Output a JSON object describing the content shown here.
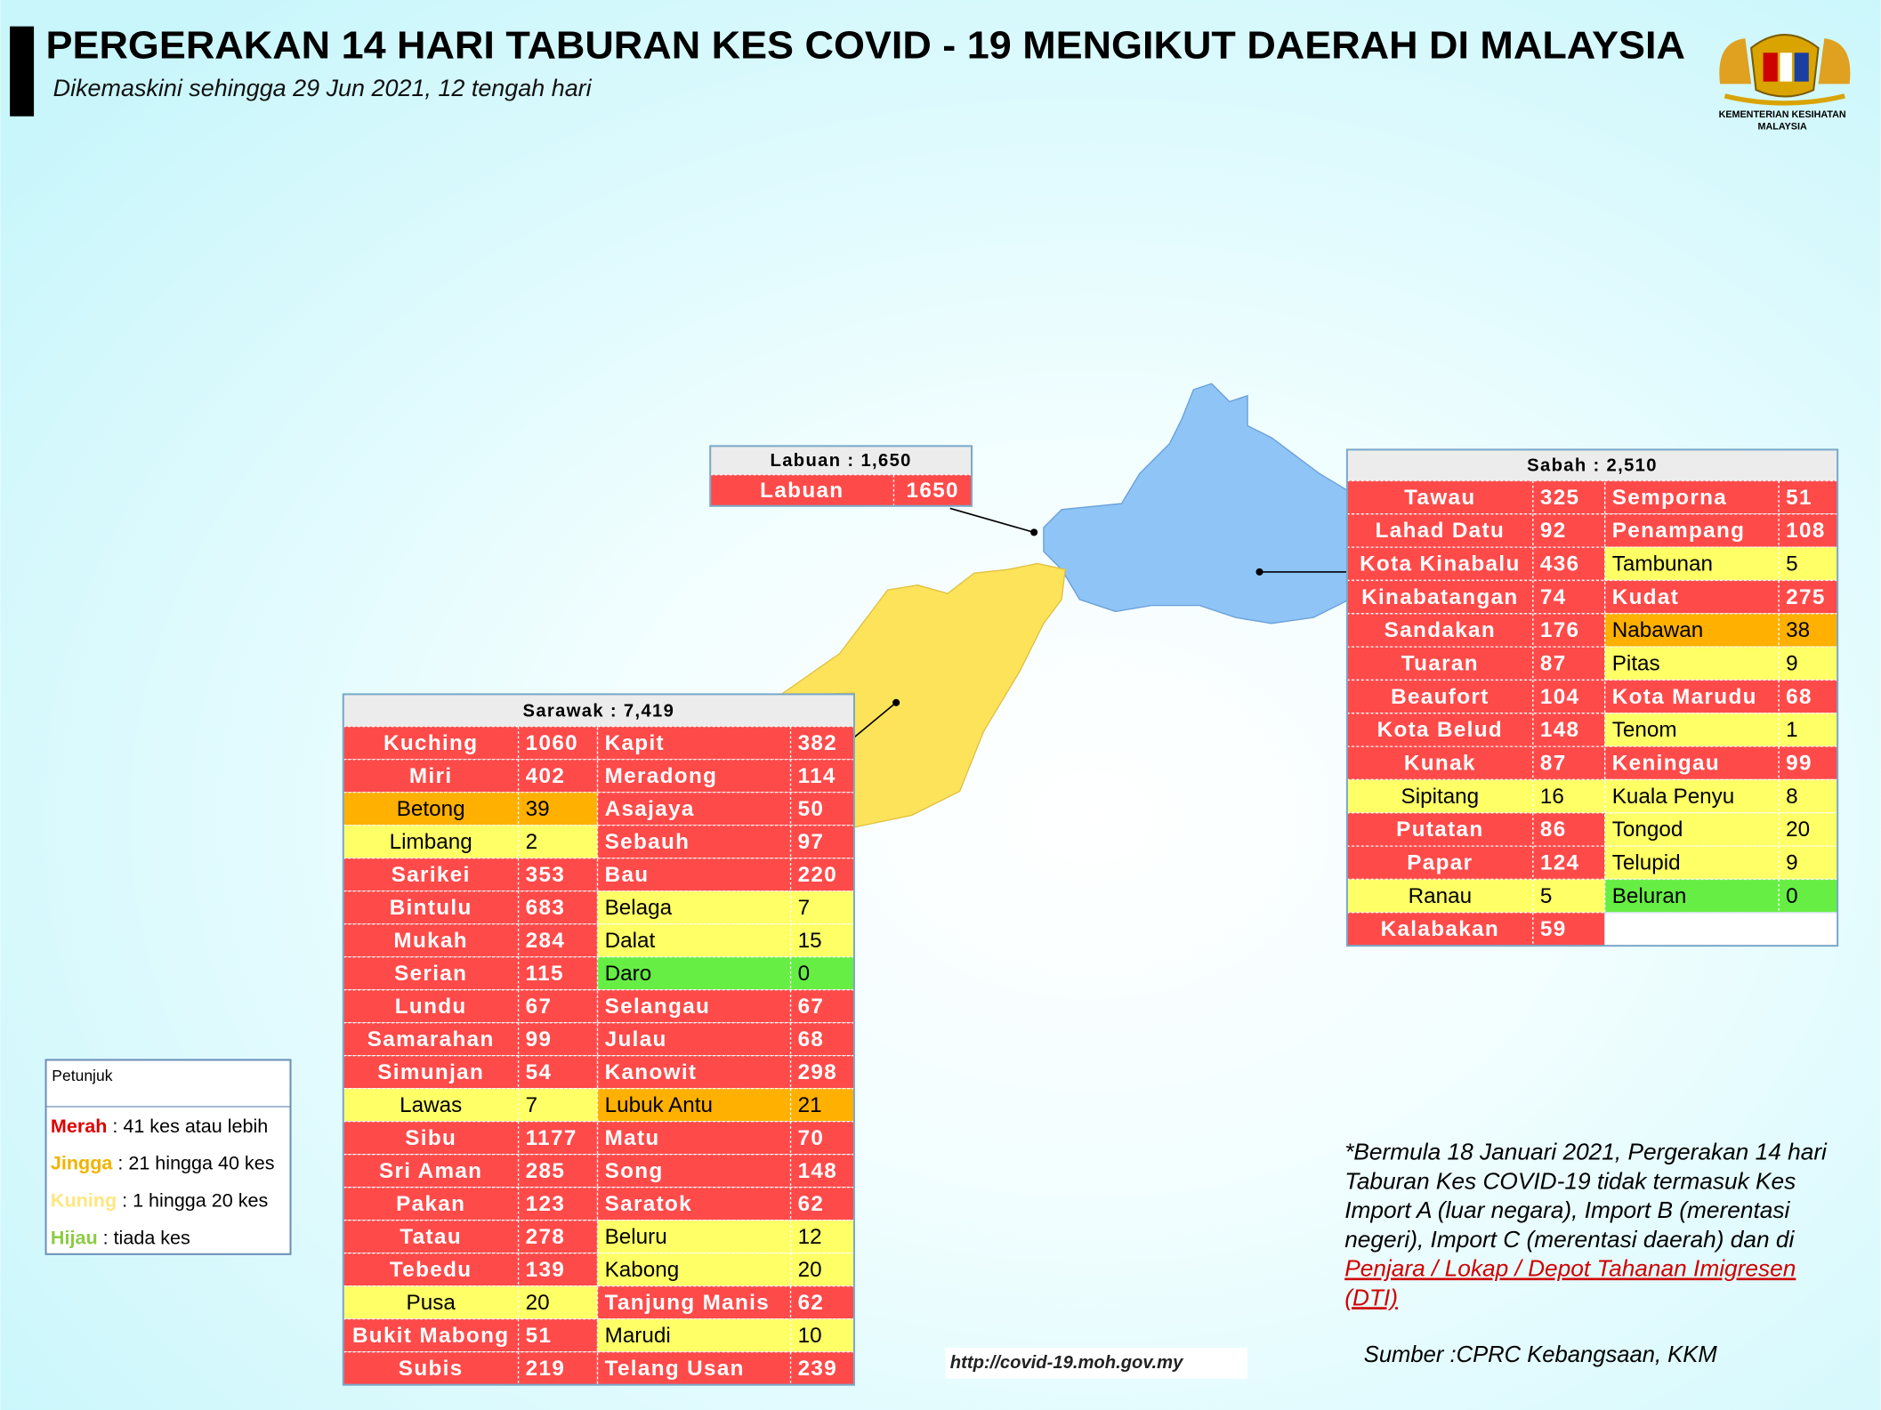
{
  "header": {
    "title": "PERGERAKAN 14 HARI TABURAN KES COVID - 19 MENGIKUT DAERAH DI MALAYSIA",
    "subtitle": "Dikemaskini sehingga 29 Jun 2021, 12 tengah hari",
    "logo_lines": [
      "KEMENTERIAN KESIHATAN",
      "MALAYSIA"
    ]
  },
  "tables": {
    "labuan": {
      "title": "Labuan : 1,650",
      "rows": [
        [
          {
            "name": "Labuan",
            "cases": 1650,
            "color": "#ff4a4a"
          }
        ]
      ]
    },
    "sabah": {
      "title": "Sabah : 2,510",
      "rows": [
        [
          {
            "name": "Tawau",
            "cases": 325,
            "color": "#ff4a4a"
          },
          {
            "name": "Semporna",
            "cases": 51,
            "color": "#ff4a4a"
          }
        ],
        [
          {
            "name": "Lahad Datu",
            "cases": 92,
            "color": "#ff4a4a"
          },
          {
            "name": "Penampang",
            "cases": 108,
            "color": "#ff4a4a"
          }
        ],
        [
          {
            "name": "Kota Kinabalu",
            "cases": 436,
            "color": "#ff4a4a"
          },
          {
            "name": "Tambunan",
            "cases": 5,
            "color": "#ffff66"
          }
        ],
        [
          {
            "name": "Kinabatangan",
            "cases": 74,
            "color": "#ff4a4a"
          },
          {
            "name": "Kudat",
            "cases": 275,
            "color": "#ff4a4a"
          }
        ],
        [
          {
            "name": "Sandakan",
            "cases": 176,
            "color": "#ff4a4a"
          },
          {
            "name": "Nabawan",
            "cases": 38,
            "color": "#ffb000"
          }
        ],
        [
          {
            "name": "Tuaran",
            "cases": 87,
            "color": "#ff4a4a"
          },
          {
            "name": "Pitas",
            "cases": 9,
            "color": "#ffff66"
          }
        ],
        [
          {
            "name": "Beaufort",
            "cases": 104,
            "color": "#ff4a4a"
          },
          {
            "name": "Kota Marudu",
            "cases": 68,
            "color": "#ff4a4a"
          }
        ],
        [
          {
            "name": "Kota Belud",
            "cases": 148,
            "color": "#ff4a4a"
          },
          {
            "name": "Tenom",
            "cases": 1,
            "color": "#ffff66"
          }
        ],
        [
          {
            "name": "Kunak",
            "cases": 87,
            "color": "#ff4a4a"
          },
          {
            "name": "Keningau",
            "cases": 99,
            "color": "#ff4a4a"
          }
        ],
        [
          {
            "name": "Sipitang",
            "cases": 16,
            "color": "#ffff66"
          },
          {
            "name": "Kuala Penyu",
            "cases": 8,
            "color": "#ffff66"
          }
        ],
        [
          {
            "name": "Putatan",
            "cases": 86,
            "color": "#ff4a4a"
          },
          {
            "name": "Tongod",
            "cases": 20,
            "color": "#ffff66"
          }
        ],
        [
          {
            "name": "Papar",
            "cases": 124,
            "color": "#ff4a4a"
          },
          {
            "name": "Telupid",
            "cases": 9,
            "color": "#ffff66"
          }
        ],
        [
          {
            "name": "Ranau",
            "cases": 5,
            "color": "#ffff66"
          },
          {
            "name": "Beluran",
            "cases": 0,
            "color": "#66ee44"
          }
        ],
        [
          {
            "name": "Kalabakan",
            "cases": 59,
            "color": "#ff4a4a"
          }
        ]
      ]
    },
    "sarawak": {
      "title": "Sarawak : 7,419",
      "rows": [
        [
          {
            "name": "Kuching",
            "cases": 1060,
            "color": "#ff4a4a"
          },
          {
            "name": "Kapit",
            "cases": 382,
            "color": "#ff4a4a"
          }
        ],
        [
          {
            "name": "Miri",
            "cases": 402,
            "color": "#ff4a4a"
          },
          {
            "name": "Meradong",
            "cases": 114,
            "color": "#ff4a4a"
          }
        ],
        [
          {
            "name": "Betong",
            "cases": 39,
            "color": "#ffb000"
          },
          {
            "name": "Asajaya",
            "cases": 50,
            "color": "#ff4a4a"
          }
        ],
        [
          {
            "name": "Limbang",
            "cases": 2,
            "color": "#ffff66"
          },
          {
            "name": "Sebauh",
            "cases": 97,
            "color": "#ff4a4a"
          }
        ],
        [
          {
            "name": "Sarikei",
            "cases": 353,
            "color": "#ff4a4a"
          },
          {
            "name": "Bau",
            "cases": 220,
            "color": "#ff4a4a"
          }
        ],
        [
          {
            "name": "Bintulu",
            "cases": 683,
            "color": "#ff4a4a"
          },
          {
            "name": "Belaga",
            "cases": 7,
            "color": "#ffff66"
          }
        ],
        [
          {
            "name": "Mukah",
            "cases": 284,
            "color": "#ff4a4a"
          },
          {
            "name": "Dalat",
            "cases": 15,
            "color": "#ffff66"
          }
        ],
        [
          {
            "name": "Serian",
            "cases": 115,
            "color": "#ff4a4a"
          },
          {
            "name": "Daro",
            "cases": 0,
            "color": "#66ee44"
          }
        ],
        [
          {
            "name": "Lundu",
            "cases": 67,
            "color": "#ff4a4a"
          },
          {
            "name": "Selangau",
            "cases": 67,
            "color": "#ff4a4a"
          }
        ],
        [
          {
            "name": "Samarahan",
            "cases": 99,
            "color": "#ff4a4a"
          },
          {
            "name": "Julau",
            "cases": 68,
            "color": "#ff4a4a"
          }
        ],
        [
          {
            "name": "Simunjan",
            "cases": 54,
            "color": "#ff4a4a"
          },
          {
            "name": "Kanowit",
            "cases": 298,
            "color": "#ff4a4a"
          }
        ],
        [
          {
            "name": "Lawas",
            "cases": 7,
            "color": "#ffff66"
          },
          {
            "name": "Lubuk Antu",
            "cases": 21,
            "color": "#ffb000"
          }
        ],
        [
          {
            "name": "Sibu",
            "cases": 1177,
            "color": "#ff4a4a"
          },
          {
            "name": "Matu",
            "cases": 70,
            "color": "#ff4a4a"
          }
        ],
        [
          {
            "name": "Sri Aman",
            "cases": 285,
            "color": "#ff4a4a"
          },
          {
            "name": "Song",
            "cases": 148,
            "color": "#ff4a4a"
          }
        ],
        [
          {
            "name": "Pakan",
            "cases": 123,
            "color": "#ff4a4a"
          },
          {
            "name": "Saratok",
            "cases": 62,
            "color": "#ff4a4a"
          }
        ],
        [
          {
            "name": "Tatau",
            "cases": 278,
            "color": "#ff4a4a"
          },
          {
            "name": "Beluru",
            "cases": 12,
            "color": "#ffff66"
          }
        ],
        [
          {
            "name": "Tebedu",
            "cases": 139,
            "color": "#ff4a4a"
          },
          {
            "name": "Kabong",
            "cases": 20,
            "color": "#ffff66"
          }
        ],
        [
          {
            "name": "Pusa",
            "cases": 20,
            "color": "#ffff66"
          },
          {
            "name": "Tanjung Manis",
            "cases": 62,
            "color": "#ff4a4a"
          }
        ],
        [
          {
            "name": "Bukit Mabong",
            "cases": 51,
            "color": "#ff4a4a"
          },
          {
            "name": "Marudi",
            "cases": 10,
            "color": "#ffff66"
          }
        ],
        [
          {
            "name": "Subis",
            "cases": 219,
            "color": "#ff4a4a"
          },
          {
            "name": "Telang Usan",
            "cases": 239,
            "color": "#ff4a4a"
          }
        ]
      ]
    }
  },
  "legend": {
    "title": "Petunjuk",
    "items": [
      {
        "label": "Merah",
        "text": " : 41 kes atau lebih",
        "color": "#e00000"
      },
      {
        "label": "Jingga",
        "text": " : 21 hingga 40 kes",
        "color": "#f0b400"
      },
      {
        "label": "Kuning",
        "text": " : 1 hingga 20 kes",
        "color": "#ffe680"
      },
      {
        "label": "Hijau",
        "text": " : tiada kes",
        "color": "#8ccc44"
      }
    ]
  },
  "note": {
    "lines": [
      "*Bermula 18 Januari 2021, Pergerakan 14 hari",
      "Taburan Kes COVID-19 tidak termasuk Kes",
      "Import A (luar negara), Import B (merentasi",
      "negeri), Import C (merentasi daerah) dan di"
    ],
    "link_lines": [
      "Penjara / Lokap / Depot Tahanan Imigresen",
      "(DTI)"
    ]
  },
  "source": "Sumber :CPRC Kebangsaan,  KKM",
  "url": "http://covid-19.moh.gov.my"
}
